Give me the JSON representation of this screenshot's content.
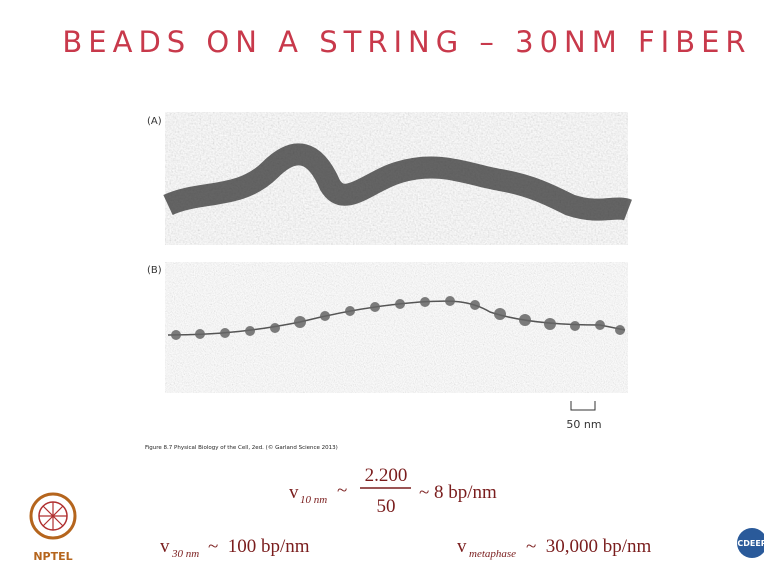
{
  "header": {
    "title": "BEADS ON A STRING – 30NM FIBER"
  },
  "figure": {
    "panels": [
      {
        "label": "(A)"
      },
      {
        "label": "(B)"
      }
    ],
    "scale_bar": "50 nm",
    "caption": "Figure 8.7  Physical Biology of the Cell, 2ed. (© Garland Science 2013)"
  },
  "equations": [
    {
      "symbol": "v",
      "subscript": "10 nm",
      "relation": "~",
      "numerator": "2.200",
      "denominator": "50",
      "result": "~ 8 bp/nm"
    },
    {
      "symbol": "v",
      "subscript": "30 nm",
      "result": "~  100 bp/nm"
    },
    {
      "symbol": "v",
      "subscript": "metaphase",
      "result": "~  30,000 bp/nm"
    }
  ],
  "logos": {
    "left": "NPTEL",
    "right": "CDEEP"
  }
}
